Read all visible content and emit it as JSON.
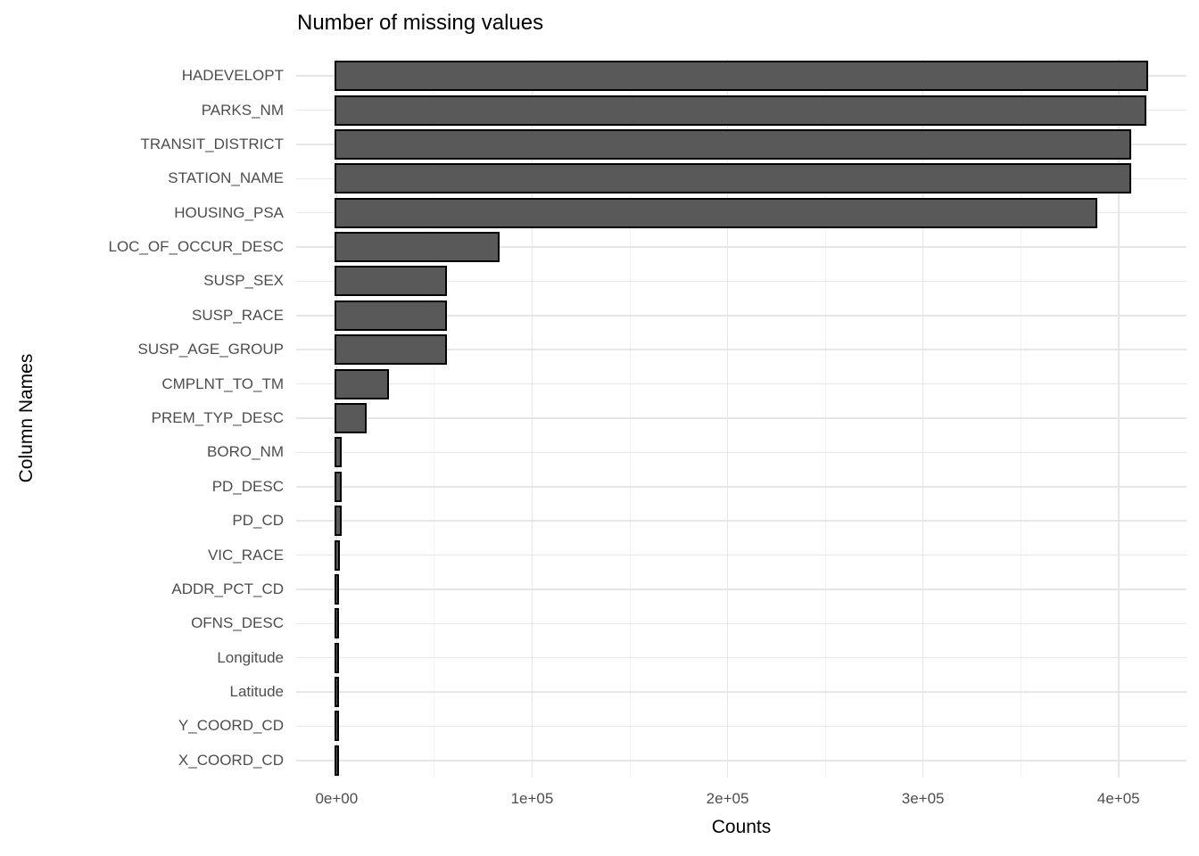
{
  "chart_data": {
    "type": "bar",
    "orientation": "horizontal",
    "title": "Number of missing values",
    "xlabel": "Counts",
    "ylabel": "Column Names",
    "legend_position": "none",
    "grid": "major-and-minor-x-major-y",
    "categories": [
      "HADEVELOPT",
      "PARKS_NM",
      "TRANSIT_DISTRICT",
      "STATION_NAME",
      "HOUSING_PSA",
      "LOC_OF_OCCUR_DESC",
      "SUSP_SEX",
      "SUSP_RACE",
      "SUSP_AGE_GROUP",
      "CMPLNT_TO_TM",
      "PREM_TYP_DESC",
      "BORO_NM",
      "PD_DESC",
      "PD_CD",
      "VIC_RACE",
      "ADDR_PCT_CD",
      "OFNS_DESC",
      "Longitude",
      "Latitude",
      "Y_COORD_CD",
      "X_COORD_CD"
    ],
    "values": [
      414100,
      413200,
      405500,
      405400,
      388100,
      82600,
      55300,
      55600,
      55600,
      26000,
      14600,
      1800,
      1600,
      1600,
      700,
      500,
      400,
      300,
      300,
      300,
      300
    ],
    "xlim": [
      -20700,
      434800
    ],
    "x_tick_values": [
      0,
      100000,
      200000,
      300000,
      400000
    ],
    "x_tick_labels": [
      "0e+00",
      "1e+05",
      "2e+05",
      "3e+05",
      "4e+05"
    ],
    "x_minor_tick_values": [
      50000,
      150000,
      250000,
      350000
    ],
    "colors": {
      "bar_fill": "#595959",
      "bar_stroke": "#000000",
      "grid_major": "#e6e6e6",
      "grid_minor": "#f2f2f2",
      "axis_text": "#4d4d4d",
      "title_text": "#000000"
    }
  }
}
